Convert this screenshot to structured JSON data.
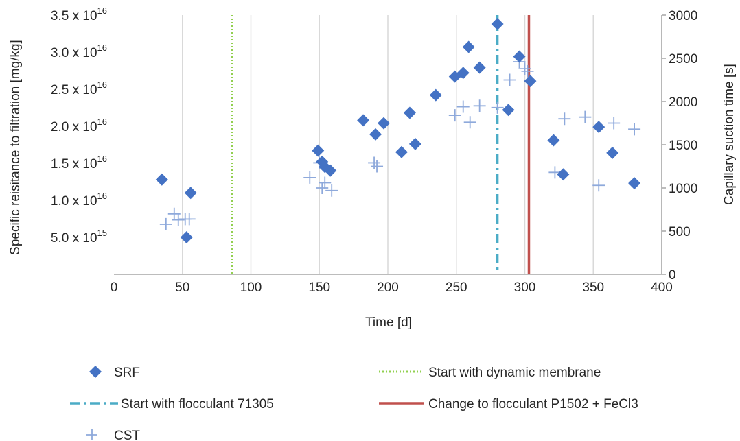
{
  "chart_data": {
    "type": "scatter",
    "xlabel": "Time [d]",
    "ylabel": "Specific reisitance to filtration [mg/kg]",
    "y2label": "Capillary suction time [s]",
    "xlim": [
      0,
      400
    ],
    "ylim": [
      0,
      3.5e+16
    ],
    "y2lim": [
      0,
      3000
    ],
    "x_ticks": [
      0,
      50,
      100,
      150,
      200,
      250,
      300,
      350,
      400
    ],
    "y_ticks": [
      {
        "mant": "5.0",
        "exp": "15",
        "value": 5000000000000000.0
      },
      {
        "mant": "1.0",
        "exp": "16",
        "value": 1e+16
      },
      {
        "mant": "1.5",
        "exp": "16",
        "value": 1.5e+16
      },
      {
        "mant": "2.0",
        "exp": "16",
        "value": 2e+16
      },
      {
        "mant": "2.5",
        "exp": "16",
        "value": 2.5e+16
      },
      {
        "mant": "3.0",
        "exp": "16",
        "value": 3e+16
      },
      {
        "mant": "3.5",
        "exp": "16",
        "value": 3.5e+16
      }
    ],
    "y_tick_base": "x 10",
    "y2_ticks": [
      0,
      500,
      1000,
      1500,
      2000,
      2500,
      3000
    ],
    "grid": "vertical",
    "legend_position": "bottom",
    "series": [
      {
        "name": "SRF",
        "marker": "diamond",
        "color": "#4472c4",
        "axis": "left",
        "points": [
          [
            35,
            1.28e+16
          ],
          [
            53,
            5000000000000000.0
          ],
          [
            56,
            1.1e+16
          ],
          [
            149,
            1.67e+16
          ],
          [
            152,
            1.52e+16
          ],
          [
            154,
            1.45e+16
          ],
          [
            158,
            1.4e+16
          ],
          [
            182,
            2.08e+16
          ],
          [
            191,
            1.89e+16
          ],
          [
            197,
            2.04e+16
          ],
          [
            210,
            1.65e+16
          ],
          [
            216,
            2.18e+16
          ],
          [
            220,
            1.76e+16
          ],
          [
            235,
            2.42e+16
          ],
          [
            249,
            2.67e+16
          ],
          [
            255,
            2.72e+16
          ],
          [
            259,
            3.07e+16
          ],
          [
            267,
            2.79e+16
          ],
          [
            280,
            3.38e+16
          ],
          [
            288,
            2.22e+16
          ],
          [
            296,
            2.94e+16
          ],
          [
            304,
            2.61e+16
          ],
          [
            321,
            1.81e+16
          ],
          [
            328,
            1.35e+16
          ],
          [
            354,
            1.99e+16
          ],
          [
            364,
            1.64e+16
          ],
          [
            380,
            1.23e+16
          ]
        ]
      },
      {
        "name": "CST",
        "marker": "plus",
        "color": "#8ea9db",
        "axis": "right",
        "points": [
          [
            38,
            580
          ],
          [
            44,
            700
          ],
          [
            47,
            630
          ],
          [
            52,
            640
          ],
          [
            55,
            640
          ],
          [
            143,
            1120
          ],
          [
            150,
            1290
          ],
          [
            152,
            1000
          ],
          [
            154,
            1060
          ],
          [
            159,
            970
          ],
          [
            190,
            1290
          ],
          [
            192,
            1250
          ],
          [
            249,
            1840
          ],
          [
            255,
            1940
          ],
          [
            260,
            1760
          ],
          [
            267,
            1950
          ],
          [
            280,
            1930
          ],
          [
            289,
            2250
          ],
          [
            296,
            2460
          ],
          [
            300,
            2380
          ],
          [
            302,
            2350
          ],
          [
            322,
            1180
          ],
          [
            329,
            1800
          ],
          [
            344,
            1820
          ],
          [
            354,
            1030
          ],
          [
            365,
            1750
          ],
          [
            380,
            1680
          ]
        ]
      }
    ],
    "vertical_lines": [
      {
        "name": "Start with dynamic membrane",
        "x": 86,
        "color": "#92d050",
        "style": "dotted"
      },
      {
        "name": "Start with flocculant 71305",
        "x": 280,
        "color": "#4bacc6",
        "style": "dashdot"
      },
      {
        "name": "Change to flocculant P1502 + FeCl3",
        "x": 303,
        "color": "#c0504d",
        "style": "solid"
      }
    ]
  }
}
